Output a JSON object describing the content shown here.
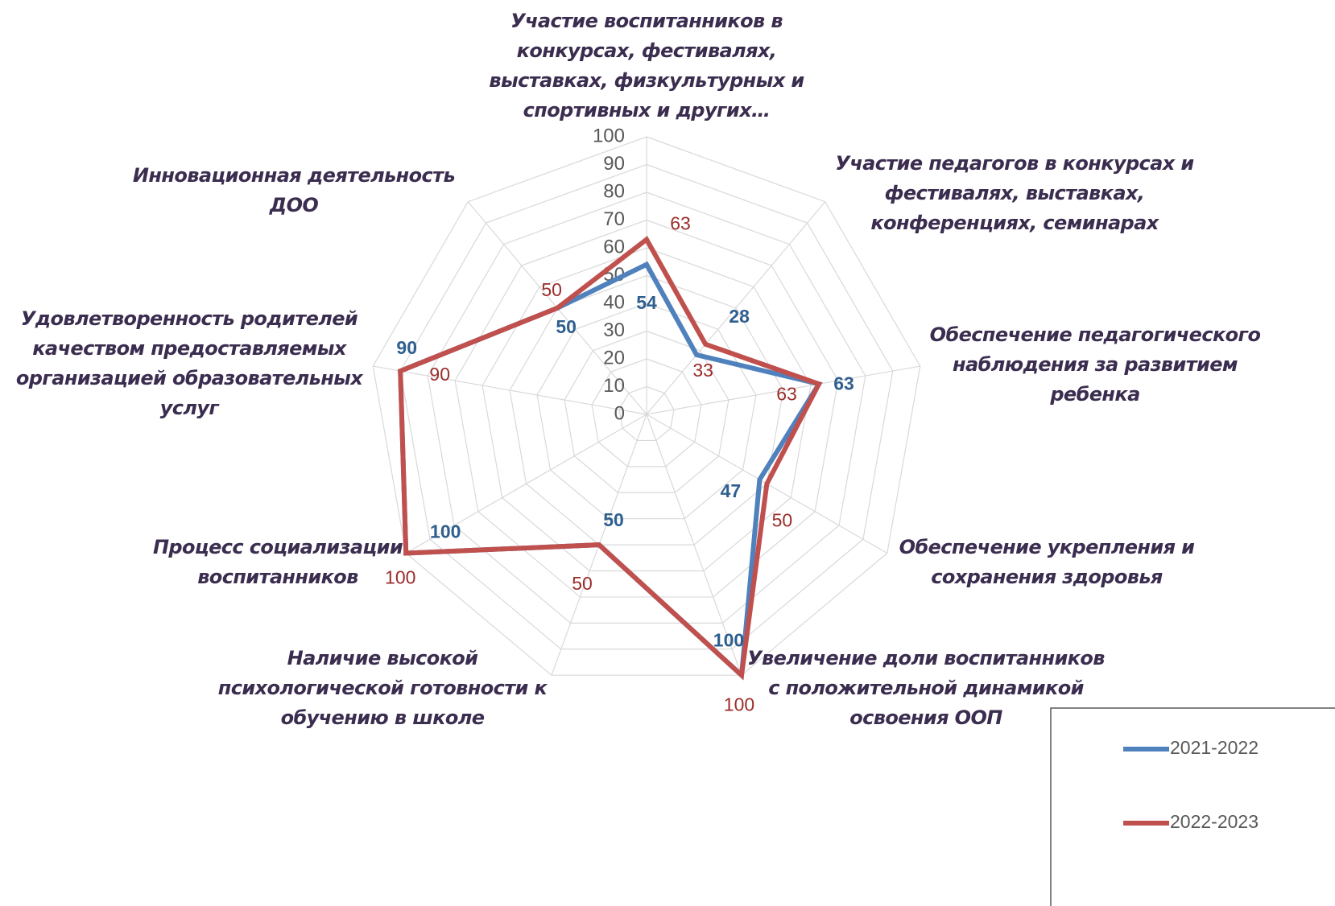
{
  "chart_data": {
    "type": "radar",
    "categories": [
      "Участие воспитанников в конкурсах, фестивалях, выставках, физкультурных и спортивных  и других…",
      "Участие педагогов в конкурсах и фестивалях, выставках, конференциях, семинарах",
      "Обеспечение педагогического наблюдения за развитием ребенка",
      "Обеспечение укрепления и сохранения здоровья",
      "Увеличение доли воспитанников с положительной динамикой освоения ООП",
      "Наличие высокой психологической готовности к обучению в школе",
      "Процесс социализации воспитанников",
      "Удовлетворенность родителей качеством предоставляемых организацией образовательных услуг",
      "Инновационная деятельность ДОО"
    ],
    "series": [
      {
        "name": "2021-2022",
        "color": "#4f81bd",
        "values": [
          54,
          28,
          63,
          47,
          100,
          50,
          100,
          90,
          50
        ]
      },
      {
        "name": "2022-2023",
        "color": "#c0504d",
        "values": [
          63,
          33,
          63,
          50,
          100,
          50,
          100,
          90,
          50
        ]
      }
    ],
    "ylim": [
      0,
      100
    ],
    "yticks": [
      0,
      10,
      20,
      30,
      40,
      50,
      60,
      70,
      80,
      90,
      100
    ],
    "grid": true
  }
}
